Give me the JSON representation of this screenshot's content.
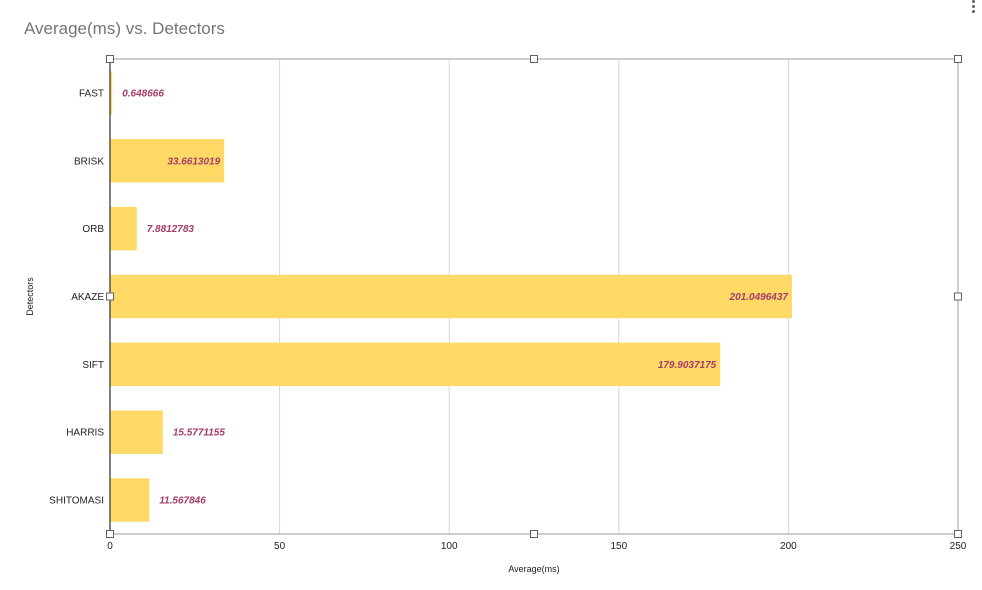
{
  "chart_data": {
    "type": "bar",
    "orientation": "horizontal",
    "title": "Average(ms) vs. Detectors",
    "xlabel": "Average(ms)",
    "ylabel": "Detectors",
    "xlim": [
      0,
      250
    ],
    "xticks": [
      0,
      50,
      100,
      150,
      200,
      250
    ],
    "grid": true,
    "legend": "none",
    "bar_color": "#ffd966",
    "label_color": "#a63c6a",
    "categories": [
      "FAST",
      "BRISK",
      "ORB",
      "AKAZE",
      "SIFT",
      "HARRIS",
      "SHITOMASI"
    ],
    "values": [
      0.648666,
      33.6613019,
      7.8812783,
      201.0496437,
      179.9037175,
      15.5771155,
      11.567846
    ],
    "data_labels": [
      "0.648666",
      "33.6613019",
      "7.8812783",
      "201.0496437",
      "179.9037175",
      "15.5771155",
      "11.567846"
    ]
  }
}
